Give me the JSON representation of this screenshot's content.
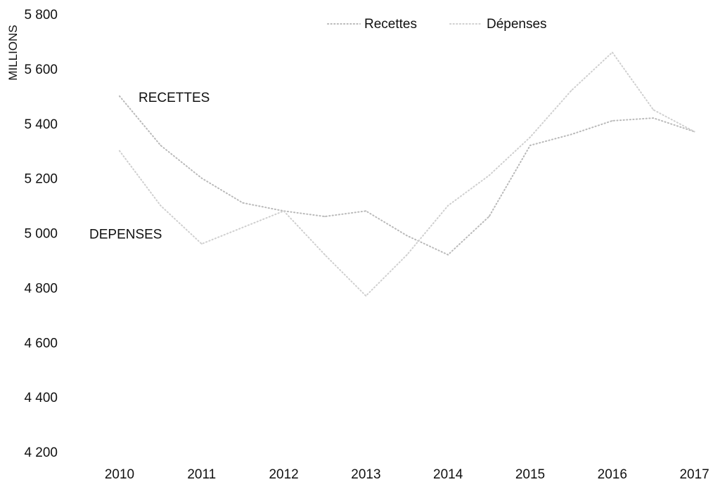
{
  "chart_data": {
    "type": "line",
    "ylabel": "MILLIONS",
    "x": [
      "2010",
      "2011",
      "2012",
      "2013",
      "2014",
      "2015",
      "2016",
      "2017"
    ],
    "ylim": [
      4200,
      5800
    ],
    "yticks": [
      4200,
      4400,
      4600,
      4800,
      5000,
      5200,
      5400,
      5600,
      5800
    ],
    "ytick_labels": [
      "4 200",
      "4 400",
      "4 600",
      "4 800",
      "5 000",
      "5 200",
      "5 400",
      "5 600",
      "5 800"
    ],
    "grid": false,
    "legend": "top-center",
    "series": [
      {
        "name": "Recettes",
        "color": "#b9b9b9",
        "points": [
          [
            2010.0,
            5500
          ],
          [
            2010.5,
            5320
          ],
          [
            2011.0,
            5200
          ],
          [
            2011.5,
            5110
          ],
          [
            2012.0,
            5080
          ],
          [
            2012.5,
            5060
          ],
          [
            2013.0,
            5080
          ],
          [
            2013.5,
            4990
          ],
          [
            2014.0,
            4920
          ],
          [
            2014.5,
            5060
          ],
          [
            2015.0,
            5320
          ],
          [
            2015.5,
            5360
          ],
          [
            2016.0,
            5410
          ],
          [
            2016.5,
            5420
          ],
          [
            2017.0,
            5370
          ]
        ]
      },
      {
        "name": "Dépenses",
        "color": "#cfcfcf",
        "points": [
          [
            2010.0,
            5300
          ],
          [
            2010.5,
            5100
          ],
          [
            2011.0,
            4960
          ],
          [
            2011.5,
            5020
          ],
          [
            2012.0,
            5080
          ],
          [
            2012.5,
            4920
          ],
          [
            2013.0,
            4770
          ],
          [
            2013.5,
            4920
          ],
          [
            2014.0,
            5100
          ],
          [
            2014.5,
            5210
          ],
          [
            2015.0,
            5350
          ],
          [
            2015.5,
            5520
          ],
          [
            2016.0,
            5660
          ],
          [
            2016.5,
            5450
          ],
          [
            2017.0,
            5370
          ]
        ]
      }
    ],
    "annotations": [
      {
        "text": "RECETTES",
        "x": 2010.0,
        "y": 5500
      },
      {
        "text": "DEPENSES",
        "x": 2010.0,
        "y": 5000
      }
    ]
  }
}
